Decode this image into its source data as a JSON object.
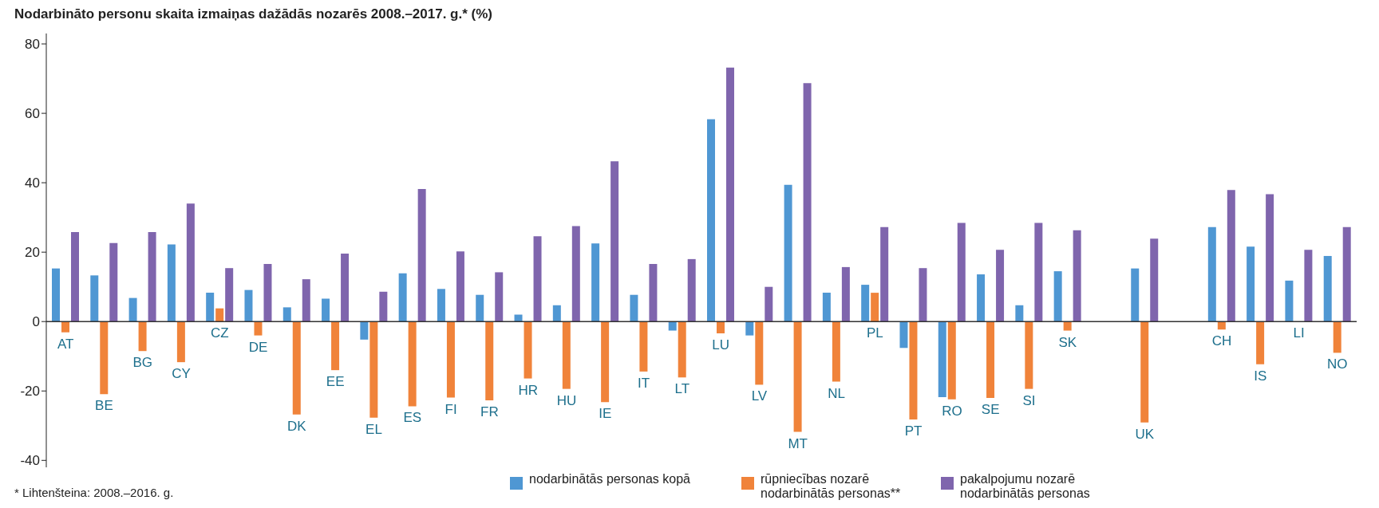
{
  "chart_data": {
    "type": "bar",
    "title": "Nodarbināto personu skaita izmaiņas dažādās nozarēs 2008.–2017. g.* (%)",
    "categories": [
      "AT",
      "BE",
      "BG",
      "CY",
      "CZ",
      "DE",
      "DK",
      "EE",
      "EL",
      "ES",
      "FI",
      "FR",
      "HR",
      "HU",
      "IE",
      "IT",
      "LT",
      "LU",
      "LV",
      "MT",
      "NL",
      "PL",
      "PT",
      "RO",
      "SE",
      "SI",
      "SK",
      null,
      "UK",
      null,
      "CH",
      "IS",
      "LI",
      "NO"
    ],
    "series": [
      {
        "name": "nodarbinātās personas kopā",
        "color": "#4f97d3",
        "values": [
          15.3,
          13.3,
          6.8,
          22.2,
          8.3,
          9.1,
          4.1,
          6.6,
          -5.2,
          13.9,
          9.4,
          7.7,
          2.0,
          4.7,
          22.5,
          7.7,
          -2.6,
          58.3,
          -4.0,
          39.4,
          8.3,
          10.6,
          -7.6,
          -21.8,
          13.6,
          4.7,
          14.5,
          null,
          15.3,
          null,
          27.2,
          21.6,
          11.8,
          18.9
        ]
      },
      {
        "name": "rūpniecības nozarē nodarbinātās personas**",
        "color": "#f0833a",
        "values": [
          -3.1,
          -20.9,
          -8.5,
          -11.7,
          3.8,
          -4.0,
          -26.8,
          -14.0,
          -27.7,
          -24.4,
          -21.9,
          -22.7,
          -16.4,
          -19.4,
          -23.2,
          -14.4,
          -16.1,
          -3.4,
          -18.2,
          -31.8,
          -17.3,
          8.3,
          -28.2,
          -22.4,
          -22.0,
          -19.4,
          -2.6,
          null,
          -29.1,
          null,
          -2.3,
          -12.3,
          null,
          -9.0
        ]
      },
      {
        "name": "pakalpojumu nozarē nodarbinātās personas",
        "color": "#7f65ad",
        "values": [
          25.8,
          22.6,
          25.8,
          34.0,
          15.4,
          16.6,
          12.2,
          19.6,
          8.6,
          38.2,
          20.2,
          14.2,
          24.6,
          27.5,
          46.2,
          16.6,
          18.0,
          73.2,
          10.0,
          68.7,
          15.7,
          27.2,
          15.4,
          28.4,
          20.7,
          28.4,
          26.3,
          null,
          23.9,
          null,
          37.9,
          36.7,
          20.7,
          27.2
        ]
      }
    ],
    "ylim": [
      -42,
      83
    ],
    "yticks": [
      -40,
      -20,
      0,
      20,
      40,
      60,
      80
    ],
    "grid": false,
    "legend": "bottom",
    "annotations": [
      "* Lihtenšteina: 2008.–2016. g."
    ]
  }
}
